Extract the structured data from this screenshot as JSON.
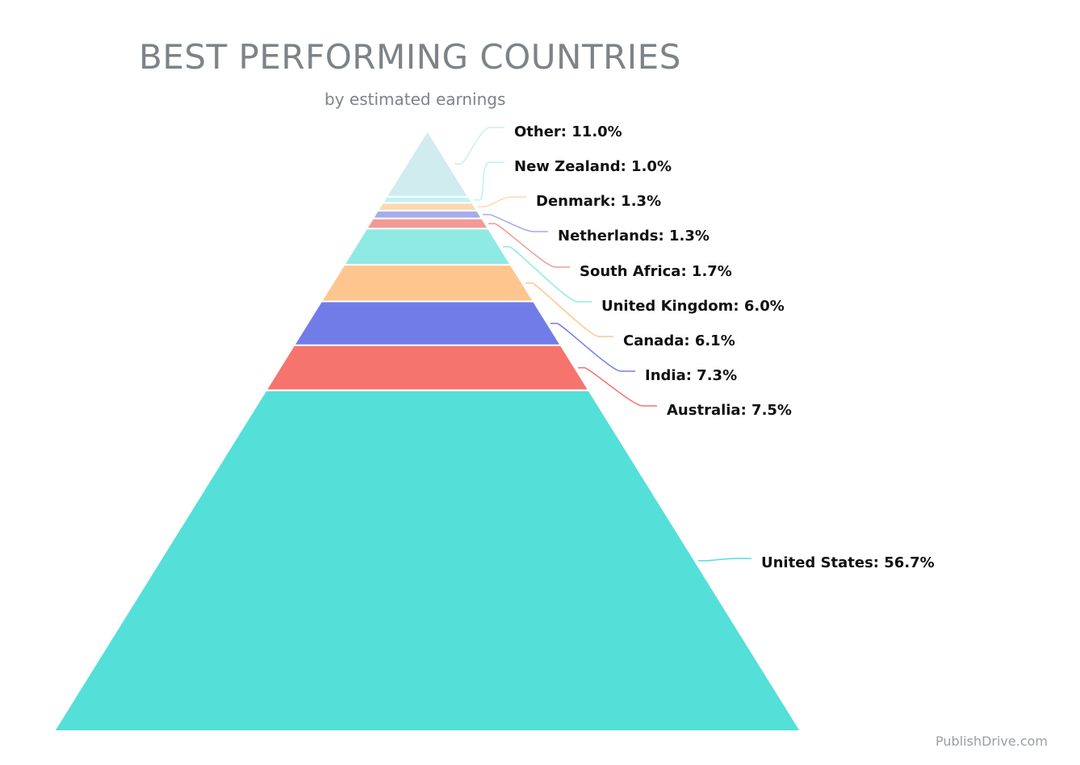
{
  "title": "BEST PERFORMING COUNTRIES",
  "subtitle": "by estimated earnings",
  "credit": "PublishDrive.com",
  "chart_data": {
    "type": "pyramid",
    "title": "BEST PERFORMING COUNTRIES",
    "subtitle": "by estimated earnings",
    "unit": "%",
    "categories": [
      "Other",
      "New Zealand",
      "Denmark",
      "Netherlands",
      "South Africa",
      "United Kingdom",
      "Canada",
      "India",
      "Australia",
      "United States"
    ],
    "values": [
      11.0,
      1.0,
      1.3,
      1.3,
      1.7,
      6.0,
      6.1,
      7.3,
      7.5,
      56.7
    ],
    "labels": [
      "Other: 11.0%",
      "New Zealand: 1.0%",
      "Denmark: 1.3%",
      "Netherlands: 1.3%",
      "South Africa: 1.7%",
      "United Kingdom: 6.0%",
      "Canada: 6.1%",
      "India: 7.3%",
      "Australia: 7.5%",
      "United States: 56.7%"
    ],
    "colors": [
      "#d0ecef",
      "#bdf4f2",
      "#fcd9b0",
      "#a6abec",
      "#f39a95",
      "#8eeae3",
      "#fec68e",
      "#727ce8",
      "#f5746e",
      "#54dfd9"
    ],
    "legend": "none"
  }
}
